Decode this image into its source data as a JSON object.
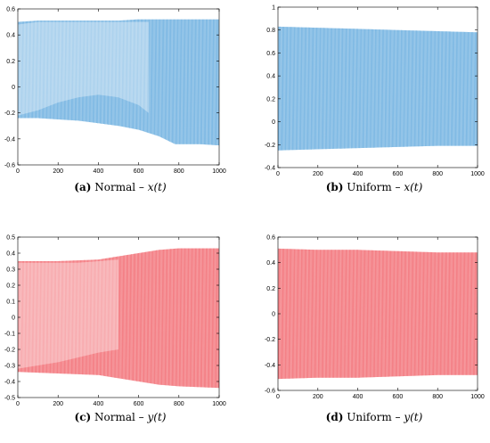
{
  "colors": {
    "blue": "#6fb0e0",
    "red": "#f26f75",
    "axis": "#000000"
  },
  "chart_data": [
    {
      "type": "line",
      "letter": "(a)",
      "caption_text": "Normal – ",
      "caption_var": "x(t)",
      "color": "blue",
      "xlim": [
        0,
        1000
      ],
      "ylim": [
        -0.6,
        0.6
      ],
      "xticks": [
        "0",
        "200",
        "400",
        "600",
        "800",
        "1000"
      ],
      "yticks": [
        "-0.6",
        "-0.4",
        "-0.2",
        "0",
        "0.2",
        "0.4",
        "0.6"
      ],
      "grid": false,
      "envelope": {
        "x": [
          0,
          100,
          200,
          300,
          400,
          500,
          600,
          700,
          780,
          900,
          1000
        ],
        "upper": [
          0.5,
          0.51,
          0.51,
          0.51,
          0.51,
          0.51,
          0.52,
          0.52,
          0.52,
          0.52,
          0.52
        ],
        "lower": [
          -0.24,
          -0.24,
          -0.25,
          -0.26,
          -0.28,
          -0.3,
          -0.33,
          -0.38,
          -0.44,
          -0.44,
          -0.45
        ]
      },
      "light_region": {
        "x": [
          0,
          100,
          200,
          300,
          400,
          500,
          600,
          650
        ],
        "upper": [
          0.48,
          0.5,
          0.5,
          0.5,
          0.5,
          0.5,
          0.5,
          0.5
        ],
        "lower": [
          -0.22,
          -0.18,
          -0.12,
          -0.08,
          -0.06,
          -0.08,
          -0.14,
          -0.2
        ]
      }
    },
    {
      "type": "line",
      "letter": "(b)",
      "caption_text": "Uniform – ",
      "caption_var": "x(t)",
      "color": "blue",
      "xlim": [
        0,
        1000
      ],
      "ylim": [
        -0.4,
        1
      ],
      "xticks": [
        "0",
        "200",
        "400",
        "600",
        "800",
        "1000"
      ],
      "yticks": [
        "-0.4",
        "-0.2",
        "0",
        "0.2",
        "0.4",
        "0.6",
        "0.8",
        "1"
      ],
      "grid": false,
      "envelope": {
        "x": [
          0,
          200,
          400,
          600,
          800,
          1000
        ],
        "upper": [
          0.83,
          0.82,
          0.81,
          0.8,
          0.79,
          0.78
        ],
        "lower": [
          -0.25,
          -0.24,
          -0.23,
          -0.22,
          -0.21,
          -0.21
        ]
      },
      "light_region": null
    },
    {
      "type": "line",
      "letter": "(c)",
      "caption_text": "Normal – ",
      "caption_var": "y(t)",
      "color": "red",
      "xlim": [
        0,
        1000
      ],
      "ylim": [
        -0.5,
        0.5
      ],
      "xticks": [
        "0",
        "200",
        "400",
        "600",
        "800",
        "1000"
      ],
      "yticks": [
        "-0.5",
        "-0.4",
        "-0.3",
        "-0.2",
        "-0.1",
        "0",
        "0.1",
        "0.2",
        "0.3",
        "0.4",
        "0.5"
      ],
      "grid": false,
      "envelope": {
        "x": [
          0,
          200,
          400,
          500,
          600,
          700,
          800,
          1000
        ],
        "upper": [
          0.35,
          0.35,
          0.36,
          0.38,
          0.4,
          0.42,
          0.43,
          0.43
        ],
        "lower": [
          -0.34,
          -0.35,
          -0.36,
          -0.38,
          -0.4,
          -0.42,
          -0.43,
          -0.44
        ]
      },
      "light_region": {
        "x": [
          0,
          100,
          200,
          300,
          400,
          500
        ],
        "upper": [
          0.34,
          0.34,
          0.34,
          0.34,
          0.35,
          0.36
        ],
        "lower": [
          -0.32,
          -0.3,
          -0.28,
          -0.25,
          -0.22,
          -0.2
        ]
      }
    },
    {
      "type": "line",
      "letter": "(d)",
      "caption_text": "Uniform – ",
      "caption_var": "y(t)",
      "color": "red",
      "xlim": [
        0,
        1000
      ],
      "ylim": [
        -0.6,
        0.6
      ],
      "xticks": [
        "0",
        "200",
        "400",
        "600",
        "800",
        "1000"
      ],
      "yticks": [
        "-0.6",
        "-0.4",
        "-0.2",
        "0",
        "0.2",
        "0.4",
        "0.6"
      ],
      "grid": false,
      "envelope": {
        "x": [
          0,
          200,
          400,
          600,
          800,
          1000
        ],
        "upper": [
          0.51,
          0.5,
          0.5,
          0.49,
          0.48,
          0.48
        ],
        "lower": [
          -0.51,
          -0.5,
          -0.5,
          -0.49,
          -0.48,
          -0.48
        ]
      },
      "light_region": null
    }
  ]
}
